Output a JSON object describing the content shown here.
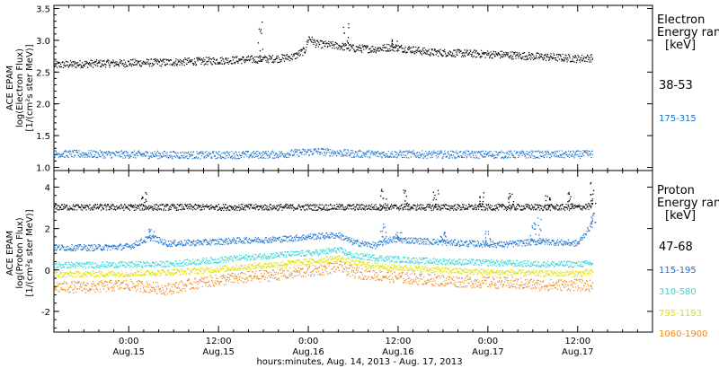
{
  "colors": {
    "axis": "#000000",
    "background": "#ffffff"
  },
  "xlabel": "hours:minutes, Aug. 14, 2013 - Aug. 17, 2013",
  "chart_data": [
    {
      "type": "scatter",
      "ylabel": [
        "ACE EPAM",
        "log(Electron Flux)",
        "[1/(cm²s ster MeV)]"
      ],
      "ylim": [
        0.95,
        3.55
      ],
      "yticks": [
        1.0,
        1.5,
        2.0,
        2.5,
        3.0,
        3.5
      ],
      "ytick_labels": [
        "1.0",
        "1.5",
        "2.0",
        "2.5",
        "3.0",
        "3.5"
      ],
      "xlim_hours": [
        -10,
        70
      ],
      "legend": {
        "placement": "right",
        "title_lines": [
          "Electron",
          "Energy ran",
          "[keV]"
        ],
        "entries": [
          "38-53",
          "175-315"
        ]
      },
      "series": [
        {
          "name": "38-53",
          "color": "#000000",
          "x_hours": [
            -10,
            -5,
            0,
            5,
            10,
            15,
            20,
            22,
            23.5,
            24,
            25,
            28,
            30,
            33,
            35,
            38,
            40,
            45,
            50,
            55,
            60,
            62
          ],
          "values": [
            2.62,
            2.64,
            2.65,
            2.66,
            2.68,
            2.7,
            2.72,
            2.75,
            2.85,
            3.05,
            2.95,
            2.92,
            2.88,
            2.87,
            2.9,
            2.86,
            2.82,
            2.8,
            2.78,
            2.75,
            2.72,
            2.73
          ],
          "spikes": [
            [
              17.5,
              3.33
            ],
            [
              29.0,
              3.3
            ],
            [
              35.5,
              3.02
            ]
          ]
        },
        {
          "name": "175-315",
          "color": "#1a73cf",
          "x_hours": [
            -10,
            0,
            10,
            20,
            25,
            30,
            40,
            50,
            60,
            62
          ],
          "values": [
            1.22,
            1.21,
            1.2,
            1.21,
            1.26,
            1.22,
            1.21,
            1.21,
            1.21,
            1.22
          ]
        }
      ]
    },
    {
      "type": "scatter",
      "ylabel": [
        "ACE EPAM",
        "log(Proton Flux)",
        "[1/(cm²s ster MeV)]"
      ],
      "ylim": [
        -3,
        4.8
      ],
      "yticks": [
        -2,
        0,
        2,
        4
      ],
      "ytick_labels": [
        "-2",
        "0",
        "2",
        "4"
      ],
      "xlim_hours": [
        -10,
        70
      ],
      "legend": {
        "placement": "right",
        "title_lines": [
          "Proton",
          "Energy ran",
          "[keV]"
        ],
        "entries": [
          "47-68",
          "115-195",
          "310-580",
          "795-1193",
          "1060-1900"
        ]
      },
      "series": [
        {
          "name": "47-68",
          "color": "#000000",
          "x_hours": [
            -10,
            0,
            10,
            20,
            30,
            40,
            50,
            60,
            62
          ],
          "values": [
            3.05,
            3.05,
            3.05,
            3.05,
            3.05,
            3.05,
            3.05,
            3.05,
            3.1
          ],
          "spikes": [
            [
              2,
              3.8
            ],
            [
              34,
              4.0
            ],
            [
              37,
              3.9
            ],
            [
              41,
              3.9
            ],
            [
              47,
              3.8
            ],
            [
              51,
              3.8
            ],
            [
              56,
              3.7
            ],
            [
              59,
              3.8
            ],
            [
              62,
              4.5
            ]
          ]
        },
        {
          "name": "115-195",
          "color": "#1a73cf",
          "x_hours": [
            -10,
            -5,
            0,
            3,
            5,
            10,
            15,
            20,
            25,
            28,
            30,
            33,
            35,
            40,
            45,
            50,
            55,
            60,
            62
          ],
          "values": [
            1.1,
            1.1,
            1.15,
            1.6,
            1.3,
            1.35,
            1.45,
            1.5,
            1.65,
            1.7,
            1.35,
            1.2,
            1.5,
            1.4,
            1.3,
            1.25,
            1.4,
            1.3,
            2.3
          ],
          "spikes": [
            [
              3,
              2.0
            ],
            [
              34,
              2.3
            ],
            [
              36,
              2.0
            ],
            [
              42,
              1.9
            ],
            [
              48,
              1.9
            ],
            [
              54,
              2.3
            ],
            [
              55,
              2.6
            ],
            [
              62,
              2.8
            ]
          ]
        },
        {
          "name": "310-580",
          "color": "#33d6d6",
          "x_hours": [
            -10,
            0,
            5,
            10,
            15,
            20,
            25,
            28,
            30,
            35,
            40,
            45,
            50,
            55,
            60,
            62
          ],
          "values": [
            0.25,
            0.28,
            0.3,
            0.45,
            0.6,
            0.75,
            0.85,
            1.0,
            0.7,
            0.55,
            0.45,
            0.4,
            0.35,
            0.3,
            0.3,
            0.35
          ]
        },
        {
          "name": "795-1193",
          "color": "#e0e000",
          "x_hours": [
            -10,
            0,
            5,
            10,
            15,
            20,
            25,
            28,
            30,
            35,
            40,
            45,
            50,
            55,
            60,
            62
          ],
          "values": [
            -0.2,
            -0.15,
            -0.1,
            0.0,
            0.15,
            0.3,
            0.45,
            0.6,
            0.35,
            0.15,
            0.05,
            -0.05,
            -0.1,
            -0.15,
            -0.15,
            -0.1
          ]
        },
        {
          "name": "1060-1900",
          "color": "#ef8a1a",
          "x_hours": [
            -10,
            -5,
            0,
            5,
            10,
            15,
            20,
            25,
            28,
            30,
            35,
            40,
            45,
            50,
            55,
            60,
            62
          ],
          "values": [
            -0.8,
            -0.8,
            -0.7,
            -0.9,
            -0.55,
            -0.35,
            -0.2,
            0.0,
            0.2,
            -0.1,
            -0.3,
            -0.45,
            -0.55,
            -0.6,
            -0.7,
            -0.7,
            -0.75
          ]
        }
      ]
    }
  ],
  "xaxis": {
    "ticks": [
      {
        "hours": 0,
        "time": "0:00",
        "day": "Aug.15"
      },
      {
        "hours": 12,
        "time": "12:00",
        "day": "Aug.15"
      },
      {
        "hours": 24,
        "time": "0:00",
        "day": "Aug.16"
      },
      {
        "hours": 36,
        "time": "12:00",
        "day": "Aug.16"
      },
      {
        "hours": 48,
        "time": "0:00",
        "day": "Aug.17"
      },
      {
        "hours": 60,
        "time": "12:00",
        "day": "Aug.17"
      }
    ],
    "minor_every_hours": 2
  }
}
